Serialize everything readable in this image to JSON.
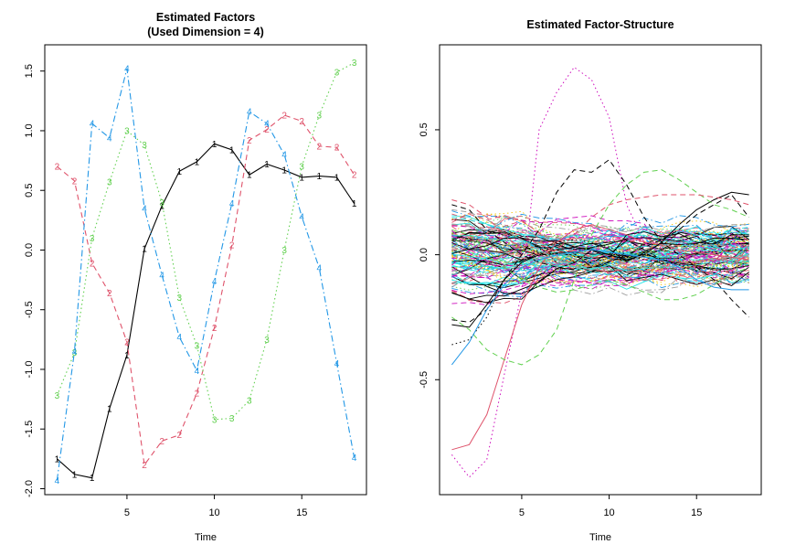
{
  "chart_data": [
    {
      "type": "line",
      "title": "Estimated Factors",
      "subtitle": "(Used Dimension = 4)",
      "xlabel": "Time",
      "ylabel": "",
      "xlim": [
        0.3,
        18.7
      ],
      "ylim": [
        -2.05,
        1.72
      ],
      "xticks": [
        "5",
        "10",
        "15"
      ],
      "yticks": [
        "-2.0",
        "-1.5",
        "-1.0",
        "-0.5",
        "0.0",
        "0.5",
        "1.0",
        "1.5"
      ],
      "legend": "none",
      "x": [
        1,
        2,
        3,
        4,
        5,
        6,
        7,
        8,
        9,
        10,
        11,
        12,
        13,
        14,
        15,
        16,
        17,
        18
      ],
      "series": [
        {
          "label": "1",
          "color": "#000000",
          "dash": "solid",
          "values": [
            -1.75,
            -1.88,
            -1.91,
            -1.33,
            -0.88,
            0.01,
            0.37,
            0.66,
            0.74,
            0.89,
            0.84,
            0.63,
            0.72,
            0.67,
            0.61,
            0.62,
            0.61,
            0.39
          ]
        },
        {
          "label": "2",
          "color": "#DF536B",
          "dash": "dashed",
          "values": [
            0.7,
            0.58,
            -0.11,
            -0.36,
            -0.77,
            -1.8,
            -1.6,
            -1.55,
            -1.2,
            -0.65,
            0.04,
            0.92,
            1.01,
            1.13,
            1.08,
            0.87,
            0.86,
            0.63
          ]
        },
        {
          "label": "3",
          "color": "#61D04F",
          "dash": "dotted",
          "values": [
            -1.22,
            -0.86,
            0.1,
            0.57,
            1.0,
            0.88,
            0.4,
            -0.4,
            -0.8,
            -1.42,
            -1.41,
            -1.26,
            -0.75,
            0.0,
            0.7,
            1.13,
            1.49,
            1.57
          ]
        },
        {
          "label": "4",
          "color": "#2297E6",
          "dash": "dashdot",
          "values": [
            -1.93,
            -0.85,
            1.06,
            0.94,
            1.52,
            0.35,
            -0.21,
            -0.73,
            -1.01,
            -0.26,
            0.39,
            1.16,
            1.06,
            0.8,
            0.28,
            -0.15,
            -0.95,
            -1.74
          ]
        }
      ]
    },
    {
      "type": "line",
      "title": "Estimated Factor-Structure",
      "xlabel": "Time",
      "ylabel": "",
      "xlim": [
        0.3,
        18.7
      ],
      "ylim": [
        -0.96,
        0.84
      ],
      "xticks": [
        "5",
        "10",
        "15"
      ],
      "yticks": [
        "-0.5",
        "0.0",
        "0.5"
      ],
      "legend": "none",
      "x": [
        1,
        2,
        3,
        4,
        5,
        6,
        7,
        8,
        9,
        10,
        11,
        12,
        13,
        14,
        15,
        16,
        17,
        18
      ],
      "palette": [
        "#000000",
        "#DF536B",
        "#61D04F",
        "#2297E6",
        "#28E2E5",
        "#CD0BBC",
        "#F5C710",
        "#9E9E9E"
      ],
      "series": [
        {
          "color": "#CD0BBC",
          "dash": "dotted",
          "values": [
            -0.8,
            -0.89,
            -0.82,
            -0.48,
            -0.15,
            0.5,
            0.65,
            0.75,
            0.7,
            0.55,
            0.2,
            0.05,
            0.0,
            -0.02,
            -0.03,
            -0.02,
            -0.03,
            -0.05
          ]
        },
        {
          "color": "#DF536B",
          "dash": "solid",
          "values": [
            -0.78,
            -0.76,
            -0.64,
            -0.42,
            -0.2,
            -0.05,
            0.05,
            0.1,
            0.12,
            0.1,
            0.08,
            0.05,
            0.04,
            0.02,
            0.01,
            0.0,
            -0.01,
            -0.02
          ]
        },
        {
          "color": "#000000",
          "dash": "dashed",
          "values": [
            -0.26,
            -0.27,
            -0.22,
            -0.1,
            0.0,
            0.1,
            0.25,
            0.34,
            0.33,
            0.38,
            0.28,
            0.15,
            0.05,
            0.0,
            -0.05,
            -0.1,
            -0.18,
            -0.25
          ]
        },
        {
          "color": "#000000",
          "dash": "dotted",
          "values": [
            -0.36,
            -0.34,
            -0.25,
            -0.1,
            -0.02,
            0.02,
            0.05,
            0.06,
            0.05,
            0.03,
            0.0,
            -0.02,
            -0.03,
            -0.04,
            -0.05,
            -0.06,
            -0.07,
            -0.08
          ]
        },
        {
          "color": "#000000",
          "dash": "solid",
          "values": [
            -0.28,
            -0.29,
            -0.2,
            -0.1,
            -0.03,
            0.0,
            0.02,
            0.03,
            0.02,
            0.0,
            -0.02,
            0.0,
            0.05,
            0.12,
            0.18,
            0.22,
            0.25,
            0.24
          ]
        },
        {
          "color": "#000000",
          "dash": "dashed",
          "values": [
            0.2,
            0.18,
            0.1,
            0.05,
            0.0,
            -0.03,
            -0.05,
            -0.06,
            -0.05,
            -0.03,
            0.0,
            0.03,
            0.06,
            0.1,
            0.16,
            0.2,
            0.24,
            0.15
          ]
        },
        {
          "color": "#61D04F",
          "dash": "dashed",
          "values": [
            -0.25,
            -0.3,
            -0.38,
            -0.42,
            -0.44,
            -0.4,
            -0.3,
            -0.1,
            0.08,
            0.2,
            0.28,
            0.33,
            0.34,
            0.3,
            0.25,
            0.2,
            0.18,
            0.15
          ]
        },
        {
          "color": "#61D04F",
          "dash": "dashed",
          "values": [
            0.1,
            0.08,
            0.02,
            -0.05,
            -0.1,
            -0.13,
            -0.15,
            -0.14,
            -0.12,
            -0.1,
            -0.12,
            -0.15,
            -0.18,
            -0.18,
            -0.16,
            -0.12,
            -0.08,
            -0.05
          ]
        },
        {
          "color": "#2297E6",
          "dash": "solid",
          "values": [
            -0.44,
            -0.35,
            -0.22,
            -0.12,
            -0.05,
            -0.02,
            0.0,
            0.01,
            0.02,
            0.01,
            0.0,
            -0.01,
            -0.02,
            -0.05,
            -0.1,
            -0.13,
            -0.14,
            -0.14
          ]
        },
        {
          "color": "#28E2E5",
          "dash": "dashed",
          "values": [
            0.15,
            0.14,
            0.12,
            0.1,
            0.06,
            0.02,
            -0.02,
            -0.05,
            -0.07,
            -0.08,
            -0.06,
            -0.03,
            0.0,
            0.03,
            0.06,
            0.08,
            0.1,
            0.11
          ]
        },
        {
          "color": "#DF536B",
          "dash": "dashed",
          "values": [
            0.22,
            0.2,
            0.15,
            0.08,
            0.02,
            0.0,
            0.02,
            0.08,
            0.15,
            0.2,
            0.22,
            0.23,
            0.24,
            0.24,
            0.24,
            0.23,
            0.22,
            0.2
          ]
        },
        {
          "color": "#9E9E9E",
          "dash": "dashed",
          "values": [
            0.18,
            0.17,
            0.14,
            0.1,
            0.06,
            0.02,
            -0.02,
            -0.05,
            -0.06,
            -0.05,
            -0.03,
            0.0,
            0.03,
            0.06,
            0.09,
            0.11,
            0.12,
            0.12
          ]
        }
      ]
    }
  ]
}
